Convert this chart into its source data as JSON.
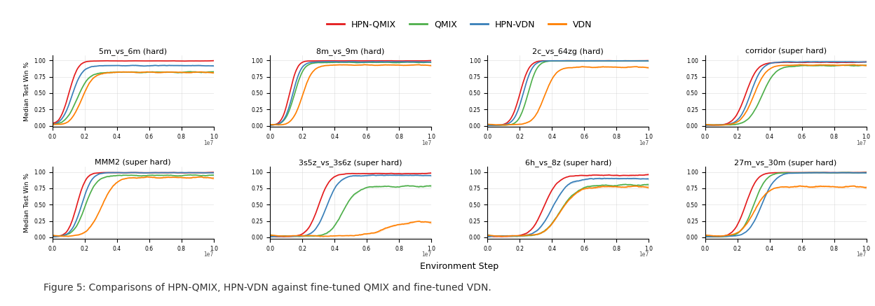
{
  "subplots": [
    {
      "title": "5m_vs_6m (hard)",
      "row": 0,
      "col": 0
    },
    {
      "title": "8m_vs_9m (hard)",
      "row": 0,
      "col": 1
    },
    {
      "title": "2c_vs_64zg (hard)",
      "row": 0,
      "col": 2
    },
    {
      "title": "corridor (super hard)",
      "row": 0,
      "col": 3
    },
    {
      "title": "MMM2 (super hard)",
      "row": 1,
      "col": 0
    },
    {
      "title": "3s5z_vs_3s6z (super hard)",
      "row": 1,
      "col": 1
    },
    {
      "title": "6h_vs_8z (super hard)",
      "row": 1,
      "col": 2
    },
    {
      "title": "27m_vs_30m (super hard)",
      "row": 1,
      "col": 3
    }
  ],
  "colors": {
    "HPN-QMIX": "#e41a1c",
    "QMIX": "#4daf4a",
    "HPN-VDN": "#377eb8",
    "VDN": "#ff7f00"
  },
  "legend_order": [
    "HPN-QMIX",
    "QMIX",
    "HPN-VDN",
    "VDN"
  ],
  "xlabel": "Environment Step",
  "ylabel": "Median Test Win %",
  "yticks": [
    0.0,
    0.25,
    0.5,
    0.75,
    1.0
  ],
  "title_fontsize": 8,
  "legend_fontsize": 9,
  "figure_caption": "Figure 5: Comparisons of HPN-QMIX, HPN-VDN against fine-tuned QMIX and fine-tuned VDN.",
  "background_color": "#ffffff"
}
